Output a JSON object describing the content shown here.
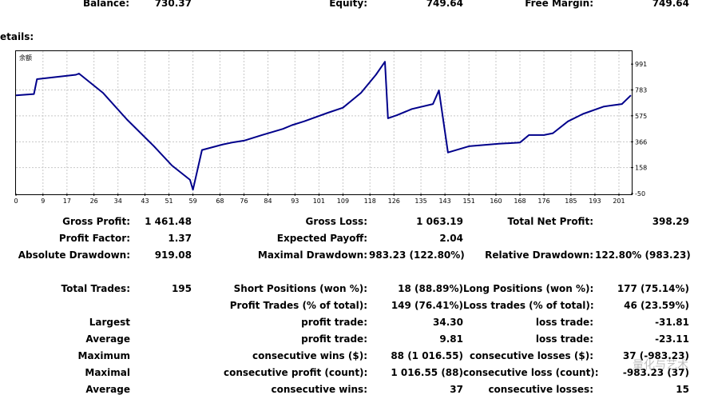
{
  "header": {
    "balance_label": "Balance:",
    "balance_value": "730.37",
    "equity_label": "Equity:",
    "equity_value": "749.64",
    "free_margin_label": "Free Margin:",
    "free_margin_value": "749.64"
  },
  "details_label": "etails:",
  "chart_data": {
    "type": "line",
    "title": "余额",
    "x_ticks": [
      "0",
      "9",
      "17",
      "26",
      "34",
      "43",
      "51",
      "59",
      "68",
      "76",
      "84",
      "93",
      "101",
      "109",
      "118",
      "126",
      "135",
      "143",
      "151",
      "160",
      "168",
      "176",
      "185",
      "193",
      "201"
    ],
    "y_ticks": [
      "991",
      "783",
      "575",
      "366",
      "158",
      "-50"
    ],
    "ylim": [
      -50,
      1095
    ],
    "xlim": [
      0,
      205
    ],
    "line_color": "#00008b",
    "series": [
      {
        "x": [
          0,
          6,
          7,
          20,
          21,
          29,
          37,
          46,
          52,
          58,
          59,
          62,
          69,
          72,
          76,
          82,
          89,
          92,
          96,
          104,
          109,
          115,
          120,
          123,
          124,
          127,
          132,
          139,
          141,
          144,
          151,
          161,
          168,
          169,
          171,
          176,
          179,
          184,
          189,
          196,
          202,
          205
        ],
        "y": [
          740,
          750,
          870,
          905,
          915,
          760,
          545,
          330,
          175,
          60,
          -20,
          300,
          345,
          360,
          375,
          420,
          470,
          500,
          530,
          600,
          640,
          760,
          905,
          1010,
          555,
          580,
          630,
          670,
          780,
          280,
          330,
          350,
          360,
          380,
          420,
          420,
          435,
          530,
          590,
          650,
          670,
          740
        ]
      }
    ]
  },
  "stats": {
    "gross_profit_label": "Gross Profit:",
    "gross_profit_value": "1 461.48",
    "gross_loss_label": "Gross Loss:",
    "gross_loss_value": "1 063.19",
    "total_net_profit_label": "Total Net Profit:",
    "total_net_profit_value": "398.29",
    "profit_factor_label": "Profit Factor:",
    "profit_factor_value": "1.37",
    "expected_payoff_label": "Expected Payoff:",
    "expected_payoff_value": "2.04",
    "absolute_drawdown_label": "Absolute Drawdown:",
    "absolute_drawdown_value": "919.08",
    "maximal_drawdown_label": "Maximal Drawdown:",
    "maximal_drawdown_value": "983.23 (122.80%)",
    "relative_drawdown_label": "Relative Drawdown:",
    "relative_drawdown_value": "122.80% (983.23)",
    "total_trades_label": "Total Trades:",
    "total_trades_value": "195",
    "short_positions_label": "Short Positions (won %):",
    "short_positions_value": "18 (88.89%)",
    "long_positions_label": "Long Positions (won %):",
    "long_positions_value": "177 (75.14%)",
    "profit_trades_label": "Profit Trades (% of total):",
    "profit_trades_value": "149 (76.41%)",
    "loss_trades_label": "Loss trades (% of total):",
    "loss_trades_value": "46 (23.59%)",
    "largest_label": "Largest",
    "largest_profit_label": "profit trade:",
    "largest_profit_value": "34.30",
    "largest_loss_label": "loss trade:",
    "largest_loss_value": "-31.81",
    "average_label": "Average",
    "average_profit_label": "profit trade:",
    "average_profit_value": "9.81",
    "average_loss_label": "loss trade:",
    "average_loss_value": "-23.11",
    "maximum_label": "Maximum",
    "max_consec_wins_label": "consecutive wins ($):",
    "max_consec_wins_value": "88 (1 016.55)",
    "max_consec_losses_label": "consecutive losses ($):",
    "max_consec_losses_value": "37 (-983.23)",
    "maximal_label": "Maximal",
    "maximal_consec_profit_label": "consecutive profit (count):",
    "maximal_consec_profit_value": "1 016.55 (88)",
    "maximal_consec_loss_label": "consecutive loss (count):",
    "maximal_consec_loss_value": "-983.23 (37)",
    "average2_label": "Average",
    "avg_consec_wins_label": "consecutive wins:",
    "avg_consec_wins_value": "37",
    "avg_consec_losses_label": "consecutive losses:",
    "avg_consec_losses_value": "15"
  },
  "watermark": "量化与艺术"
}
